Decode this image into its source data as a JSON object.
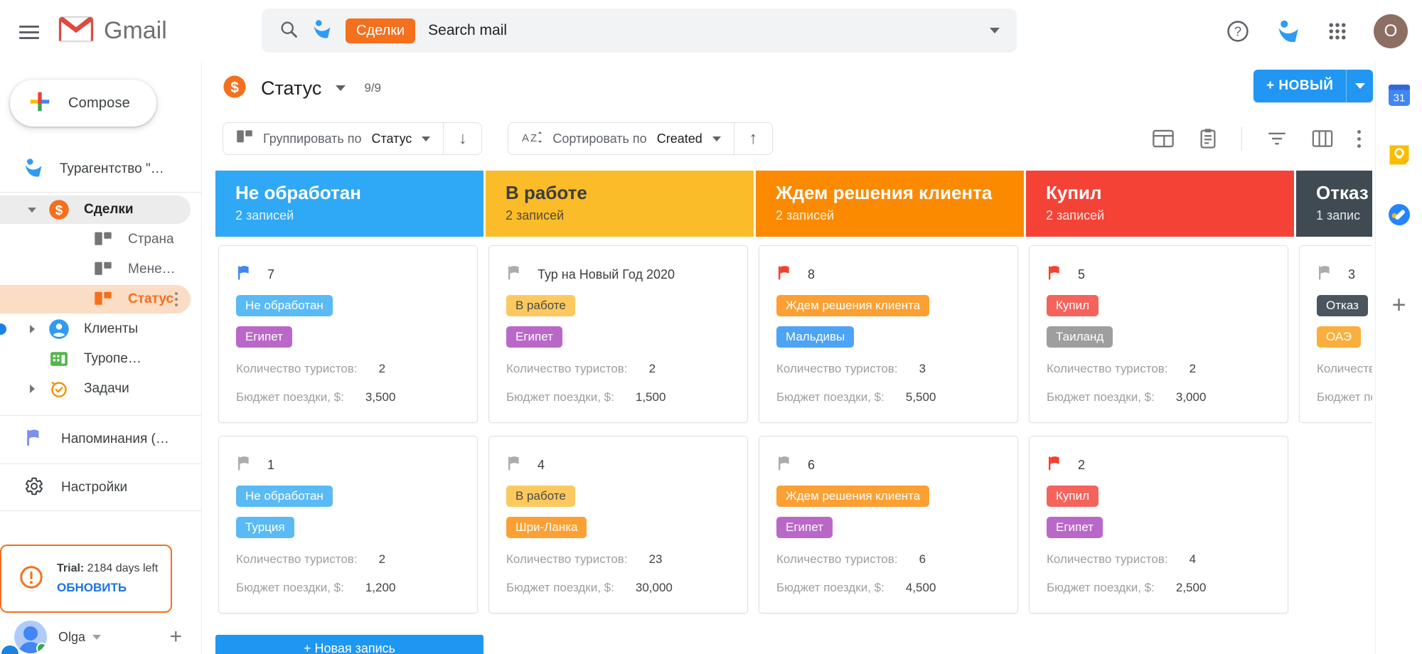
{
  "topbar": {
    "app_name": "Gmail",
    "search_chip": "Сделки",
    "search_placeholder": "Search mail",
    "avatar_letter": "O"
  },
  "sidebar": {
    "compose_label": "Compose",
    "workspace": "Турагентство \"…",
    "items": [
      {
        "label": "Сделки",
        "icon": "dollar-icon",
        "icon_color": "#F4701D",
        "caret": "down",
        "style": "bold",
        "pill": "#ececec"
      },
      {
        "label": "Страна",
        "icon": "kanban-icon",
        "icon_color": "#757575",
        "caret": "none",
        "style": "sub"
      },
      {
        "label": "Мене…",
        "icon": "kanban-icon",
        "icon_color": "#757575",
        "caret": "none",
        "style": "sub"
      },
      {
        "label": "Статус",
        "icon": "kanban-icon",
        "icon_color": "#F4701D",
        "caret": "none",
        "style": "sub-active",
        "pill": "#fbdcc5",
        "kebab": true
      },
      {
        "label": "Клиенты",
        "icon": "person-icon",
        "icon_color": "#2f9bf2",
        "caret": "right",
        "style": "parent",
        "edge_dot": true
      },
      {
        "label": "Туропе…",
        "icon": "building-icon",
        "icon_color": "#52B54B",
        "caret": "none",
        "style": "parent"
      },
      {
        "label": "Задачи",
        "icon": "tasks-icon",
        "icon_color": "#FB8A00",
        "caret": "right",
        "style": "parent"
      }
    ],
    "reminders_label": "Напоминания (…",
    "settings_label": "Настройки",
    "trial": {
      "prefix": "Trial:",
      "days": " 2184 days left",
      "action": "ОБНОВИТЬ"
    },
    "user_name": "Olga"
  },
  "main": {
    "view_title": "Статус",
    "view_counter": "9/9",
    "new_button_label": "+ НОВЫЙ",
    "toolbar": {
      "group_by_prefix": "Группировать по",
      "group_by_value": "Статус",
      "sort_by_prefix": "Сортировать по",
      "sort_by_value": "Created"
    },
    "field_labels": {
      "tourists": "Количество туристов:",
      "budget": "Бюджет поездки, $:"
    },
    "new_record_label": "+ Новая запись",
    "columns": [
      {
        "title": "Не обработан",
        "count": "2 записей",
        "header_bg": "#2FA8F6",
        "header_fg": "#ffffff",
        "new_button": true,
        "cards": [
          {
            "flag": "#4086F4",
            "title": "7",
            "tags": [
              {
                "label": "Не обработан",
                "bg": "#59BAF5",
                "fg": "#ffffff"
              },
              {
                "label": "Египет",
                "bg": "#BA68C8",
                "fg": "#ffffff"
              }
            ],
            "tourists": "2",
            "budget": "3,500"
          },
          {
            "flag": "#ACACAC",
            "title": "1",
            "tags": [
              {
                "label": "Не обработан",
                "bg": "#59BAF5",
                "fg": "#ffffff"
              },
              {
                "label": "Турция",
                "bg": "#59BAF5",
                "fg": "#ffffff"
              }
            ],
            "tourists": "2",
            "budget": "1,200"
          }
        ]
      },
      {
        "title": "В работе",
        "count": "2 записей",
        "header_bg": "#FBBC29",
        "header_fg": "#3d3d3d",
        "new_button": false,
        "cards": [
          {
            "flag": "#ACACAC",
            "title": "Тур на Новый Год 2020",
            "tags": [
              {
                "label": "В работе",
                "bg": "#FDC95F",
                "fg": "#4a4a4a"
              },
              {
                "label": "Египет",
                "bg": "#BA68C8",
                "fg": "#ffffff"
              }
            ],
            "tourists": "2",
            "budget": "1,500"
          },
          {
            "flag": "#ACACAC",
            "title": "4",
            "tags": [
              {
                "label": "В работе",
                "bg": "#FDC95F",
                "fg": "#4a4a4a"
              },
              {
                "label": "Шри-Ланка",
                "bg": "#FCA033",
                "fg": "#ffffff"
              }
            ],
            "tourists": "23",
            "budget": "30,000"
          }
        ]
      },
      {
        "title": "Ждем решения клиента",
        "count": "2 записей",
        "header_bg": "#FB8A00",
        "header_fg": "#ffffff",
        "new_button": false,
        "cards": [
          {
            "flag": "#F5402C",
            "title": "8",
            "tags": [
              {
                "label": "Ждем решения клиента",
                "bg": "#FCA033",
                "fg": "#ffffff"
              },
              {
                "label": "Мальдивы",
                "bg": "#4DA3F5",
                "fg": "#ffffff"
              }
            ],
            "tourists": "3",
            "budget": "5,500"
          },
          {
            "flag": "#ACACAC",
            "title": "6",
            "tags": [
              {
                "label": "Ждем решения клиента",
                "bg": "#FCA033",
                "fg": "#ffffff"
              },
              {
                "label": "Египет",
                "bg": "#BA68C8",
                "fg": "#ffffff"
              }
            ],
            "tourists": "6",
            "budget": "4,500"
          }
        ]
      },
      {
        "title": "Купил",
        "count": "2 записей",
        "header_bg": "#F44336",
        "header_fg": "#ffffff",
        "new_button": false,
        "cards": [
          {
            "flag": "#F5402C",
            "title": "5",
            "tags": [
              {
                "label": "Купил",
                "bg": "#F4645C",
                "fg": "#ffffff"
              },
              {
                "label": "Таиланд",
                "bg": "#9E9E9E",
                "fg": "#ffffff"
              }
            ],
            "tourists": "2",
            "budget": "3,000"
          },
          {
            "flag": "#F5402C",
            "title": "2",
            "tags": [
              {
                "label": "Купил",
                "bg": "#F4645C",
                "fg": "#ffffff"
              },
              {
                "label": "Египет",
                "bg": "#BA68C8",
                "fg": "#ffffff"
              }
            ],
            "tourists": "4",
            "budget": "2,500"
          }
        ]
      },
      {
        "title": "Отказ",
        "count": "1 запис",
        "header_bg": "#3F4A52",
        "header_fg": "#ffffff",
        "new_button": false,
        "cards": [
          {
            "flag": "#ACACAC",
            "title": "3",
            "tags": [
              {
                "label": "Отказ",
                "bg": "#4A555E",
                "fg": "#ffffff"
              },
              {
                "label": "ОАЭ",
                "bg": "#FBAE3C",
                "fg": "#ffffff"
              }
            ],
            "tourists": "",
            "budget": ""
          }
        ]
      }
    ]
  },
  "rightbar": {
    "calendar_label": "31"
  }
}
